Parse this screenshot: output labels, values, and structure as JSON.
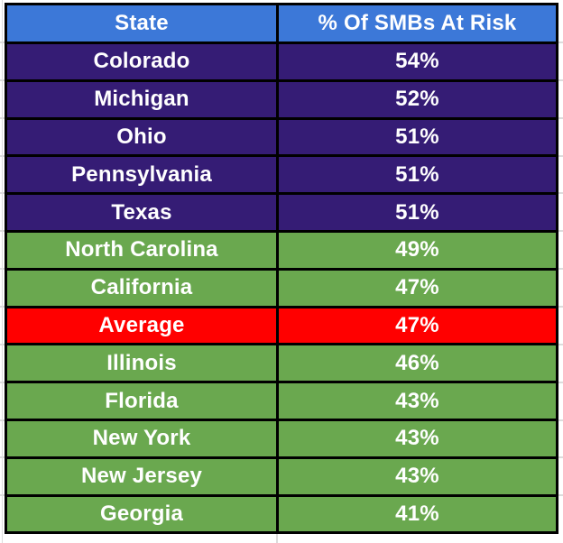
{
  "table": {
    "columns": [
      {
        "label": "State"
      },
      {
        "label": "% Of SMBs At Risk"
      }
    ],
    "rows": [
      {
        "state": "Colorado",
        "percent": "54%",
        "category": "purple"
      },
      {
        "state": "Michigan",
        "percent": "52%",
        "category": "purple"
      },
      {
        "state": "Ohio",
        "percent": "51%",
        "category": "purple"
      },
      {
        "state": "Pennsylvania",
        "percent": "51%",
        "category": "purple"
      },
      {
        "state": "Texas",
        "percent": "51%",
        "category": "purple"
      },
      {
        "state": "North Carolina",
        "percent": "49%",
        "category": "green"
      },
      {
        "state": "California",
        "percent": "47%",
        "category": "green"
      },
      {
        "state": "Average",
        "percent": "47%",
        "category": "red"
      },
      {
        "state": "Illinois",
        "percent": "46%",
        "category": "green"
      },
      {
        "state": "Florida",
        "percent": "43%",
        "category": "green"
      },
      {
        "state": "New York",
        "percent": "43%",
        "category": "green"
      },
      {
        "state": "New Jersey",
        "percent": "43%",
        "category": "green"
      },
      {
        "state": "Georgia",
        "percent": "41%",
        "category": "green"
      }
    ],
    "colors": {
      "header_bg": "#3c78d8",
      "purple_bg": "#351c75",
      "green_bg": "#6aa84f",
      "red_bg": "#ff0000",
      "text": "#ffffff",
      "border": "#000000",
      "gridline": "#dcdcdc"
    }
  }
}
